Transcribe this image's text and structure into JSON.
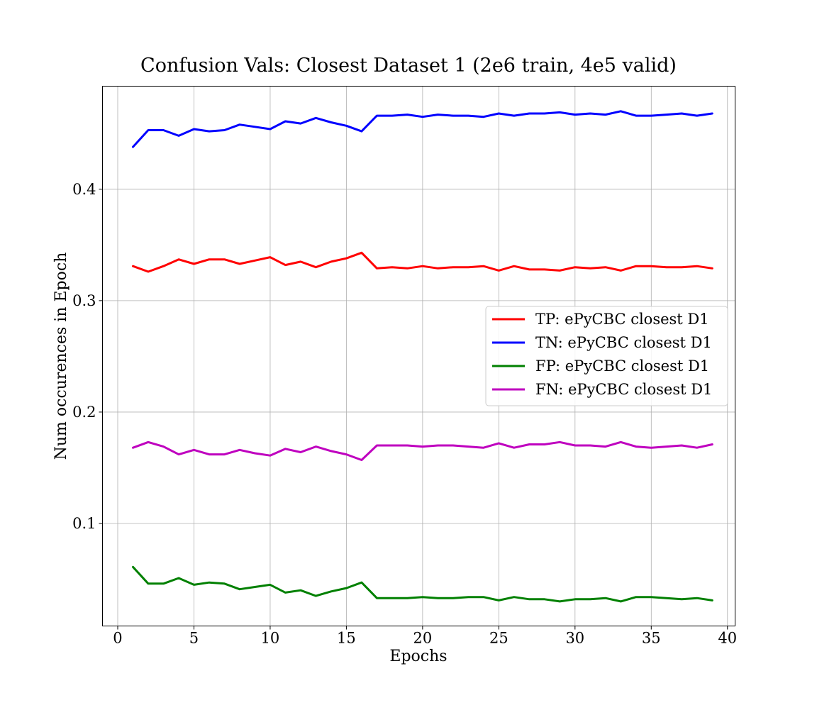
{
  "chart_data": {
    "type": "line",
    "title": "Confusion Vals: Closest Dataset 1 (2e6 train, 4e5 valid)",
    "xlabel": "Epochs",
    "ylabel": "Num occurences in Epoch",
    "xlim": [
      -1,
      40.5
    ],
    "ylim": [
      0.008,
      0.4925
    ],
    "xticks": [
      0,
      5,
      10,
      15,
      20,
      25,
      30,
      35,
      40
    ],
    "yticks": [
      0.1,
      0.2,
      0.3,
      0.4
    ],
    "xtick_labels": [
      "0",
      "5",
      "10",
      "15",
      "20",
      "25",
      "30",
      "35",
      "40"
    ],
    "ytick_labels": [
      "0.1",
      "0.2",
      "0.3",
      "0.4"
    ],
    "grid": true,
    "legend_position": "center-right",
    "x": [
      1,
      2,
      3,
      4,
      5,
      6,
      7,
      8,
      9,
      10,
      11,
      12,
      13,
      14,
      15,
      16,
      17,
      18,
      19,
      20,
      21,
      22,
      23,
      24,
      25,
      26,
      27,
      28,
      29,
      30,
      31,
      32,
      33,
      34,
      35,
      36,
      37,
      38,
      39
    ],
    "series": [
      {
        "name": "TP: ePyCBC closest D1",
        "color": "#ff0000",
        "values": [
          0.331,
          0.326,
          0.331,
          0.337,
          0.333,
          0.337,
          0.337,
          0.333,
          0.336,
          0.339,
          0.332,
          0.335,
          0.33,
          0.335,
          0.338,
          0.343,
          0.329,
          0.33,
          0.329,
          0.331,
          0.329,
          0.33,
          0.33,
          0.331,
          0.327,
          0.331,
          0.328,
          0.328,
          0.327,
          0.33,
          0.329,
          0.33,
          0.327,
          0.331,
          0.331,
          0.33,
          0.33,
          0.331,
          0.329
        ]
      },
      {
        "name": "TN: ePyCBC closest D1",
        "color": "#0000ff",
        "values": [
          0.438,
          0.453,
          0.453,
          0.448,
          0.454,
          0.452,
          0.453,
          0.458,
          0.456,
          0.454,
          0.461,
          0.459,
          0.464,
          0.46,
          0.457,
          0.452,
          0.466,
          0.466,
          0.467,
          0.465,
          0.467,
          0.466,
          0.466,
          0.465,
          0.468,
          0.466,
          0.468,
          0.468,
          0.469,
          0.467,
          0.468,
          0.467,
          0.47,
          0.466,
          0.466,
          0.467,
          0.468,
          0.466,
          0.468
        ]
      },
      {
        "name": "FP: ePyCBC closest D1",
        "color": "#008000",
        "values": [
          0.061,
          0.046,
          0.046,
          0.051,
          0.045,
          0.047,
          0.046,
          0.041,
          0.043,
          0.045,
          0.038,
          0.04,
          0.035,
          0.039,
          0.042,
          0.047,
          0.033,
          0.033,
          0.033,
          0.034,
          0.033,
          0.033,
          0.034,
          0.034,
          0.031,
          0.034,
          0.032,
          0.032,
          0.03,
          0.032,
          0.032,
          0.033,
          0.03,
          0.034,
          0.034,
          0.033,
          0.032,
          0.033,
          0.031
        ]
      },
      {
        "name": "FN: ePyCBC closest D1",
        "color": "#bf00bf",
        "values": [
          0.168,
          0.173,
          0.169,
          0.162,
          0.166,
          0.162,
          0.162,
          0.166,
          0.163,
          0.161,
          0.167,
          0.164,
          0.169,
          0.165,
          0.162,
          0.157,
          0.17,
          0.17,
          0.17,
          0.169,
          0.17,
          0.17,
          0.169,
          0.168,
          0.172,
          0.168,
          0.171,
          0.171,
          0.173,
          0.17,
          0.17,
          0.169,
          0.173,
          0.169,
          0.168,
          0.169,
          0.17,
          0.168,
          0.171
        ]
      }
    ]
  }
}
